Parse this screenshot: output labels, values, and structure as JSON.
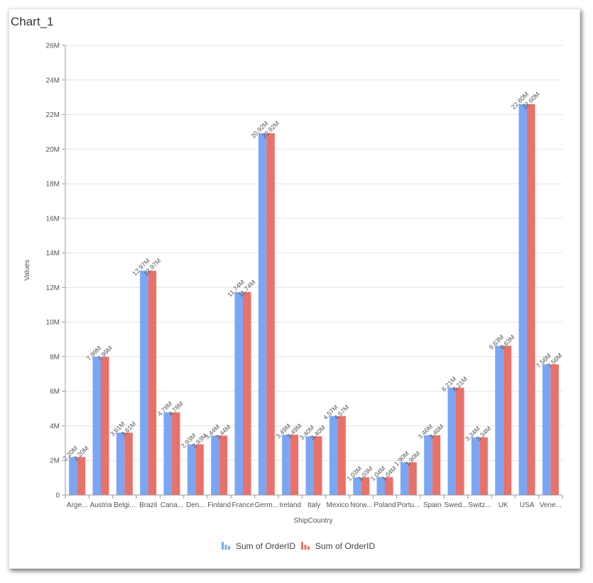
{
  "chart_title": "Chart_1",
  "chart_data": {
    "type": "bar",
    "xlabel": "ShipCountry",
    "ylabel": "Values",
    "ylim": [
      0,
      26000000
    ],
    "yticks": [
      "0",
      "2M",
      "4M",
      "6M",
      "8M",
      "10M",
      "12M",
      "14M",
      "16M",
      "18M",
      "20M",
      "22M",
      "24M",
      "26M"
    ],
    "grid": true,
    "legend_position": "bottom",
    "categories": [
      "Arge...",
      "Austria",
      "Belgi...",
      "Brazil",
      "Cana...",
      "Den...",
      "Finland",
      "France",
      "Germ...",
      "Ireland",
      "Italy",
      "Mexico",
      "Norw...",
      "Poland",
      "Portu...",
      "Spain",
      "Swed...",
      "Switz...",
      "UK",
      "USA",
      "Vene..."
    ],
    "series": [
      {
        "name": "Sum of OrderID",
        "color": "#7aa6f5",
        "values": [
          2200000,
          7990000,
          3610000,
          12970000,
          4780000,
          2930000,
          3440000,
          11740000,
          20920000,
          3490000,
          3400000,
          4570000,
          1030000,
          1040000,
          1900000,
          3460000,
          6210000,
          3340000,
          8630000,
          22600000,
          7560000
        ],
        "labels": [
          "2.20M",
          "7.99M",
          "3.61M",
          "12.97M",
          "4.78M",
          "2.93M",
          "3.44M",
          "11.74M",
          "20.92M",
          "3.49M",
          "3.40M",
          "4.57M",
          "1.03M",
          "1.04M",
          "1.90M",
          "3.46M",
          "6.21M",
          "3.34M",
          "8.63M",
          "22.60M",
          "7.56M"
        ]
      },
      {
        "name": "Sum of OrderID",
        "color": "#e8726a",
        "values": [
          2200000,
          7990000,
          3610000,
          12970000,
          4780000,
          2930000,
          3440000,
          11740000,
          20920000,
          3490000,
          3400000,
          4570000,
          1030000,
          1040000,
          1900000,
          3460000,
          6210000,
          3340000,
          8630000,
          22600000,
          7560000
        ],
        "labels": [
          "2.20M",
          "7.99M",
          "3.61M",
          "12.97M",
          "4.78M",
          "2.93M",
          "3.44M",
          "11.74M",
          "20.92M",
          "3.49M",
          "3.40M",
          "4.57M",
          "1.03M",
          "1.04M",
          "1.90M",
          "3.46M",
          "6.21M",
          "3.34M",
          "8.63M",
          "22.60M",
          "7.56M"
        ]
      }
    ]
  }
}
